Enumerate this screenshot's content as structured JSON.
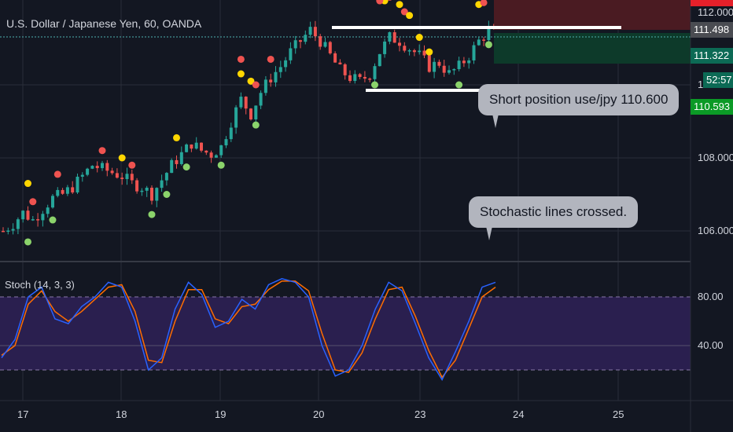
{
  "header": {
    "symbol_title": "U.S. Dollar / Japanese Yen, 60, OANDA"
  },
  "annotations": {
    "short_callout": "Short position use/jpy 110.600",
    "stoch_callout": "Stochastic lines crossed."
  },
  "price_scale": {
    "ticks": [
      "112.000",
      "108.000",
      "106.000"
    ],
    "partial_ticks": [
      "1"
    ],
    "tags": [
      {
        "label": "111.498",
        "color": "#4a4c52"
      },
      {
        "label": "111.322",
        "color": "#0c6a55"
      },
      {
        "label": "52:57",
        "color": "#0c6a55"
      },
      {
        "label": "110.593",
        "color": "#0b9a26"
      }
    ]
  },
  "stoch_panel": {
    "title": "Stoch (14, 3, 3)",
    "ticks": [
      "80.00",
      "40.00"
    ]
  },
  "time_axis": {
    "labels": [
      "17",
      "18",
      "19",
      "20",
      "23",
      "24",
      "25"
    ]
  },
  "colors": {
    "background": "#131722",
    "up_candle": "#26a69a",
    "down_candle": "#ef5350",
    "k_line": "#2962ff",
    "d_line": "#ff6d00",
    "stoch_band": "#2a1f4f",
    "dot_red": "#ef5350",
    "dot_yellow": "#ffd600",
    "dot_green": "#8bd36b"
  },
  "chart_data": [
    {
      "type": "candlestick",
      "title": "U.S. Dollar / Japanese Yen, 60, OANDA",
      "x_ticks": [
        "17",
        "18",
        "19",
        "20",
        "23",
        "24",
        "25"
      ],
      "y_ticks": [
        106.0,
        108.0,
        112.0
      ],
      "ylim": [
        105.2,
        112.6
      ],
      "current_price": 111.498,
      "levels": {
        "short_entry": 110.6,
        "take_profit_zone": 111.322
      },
      "close_path": [
        [
          0,
          106.0
        ],
        [
          2,
          106.2
        ],
        [
          4,
          106.5
        ],
        [
          6,
          106.3
        ],
        [
          8,
          106.6
        ],
        [
          10,
          106.9
        ],
        [
          12,
          107.0
        ],
        [
          14,
          107.2
        ],
        [
          16,
          107.5
        ],
        [
          18,
          107.8
        ],
        [
          20,
          107.7
        ],
        [
          22,
          107.6
        ],
        [
          24,
          107.5
        ],
        [
          26,
          107.3
        ],
        [
          28,
          107.2
        ],
        [
          30,
          107.0
        ],
        [
          32,
          107.4
        ],
        [
          34,
          107.8
        ],
        [
          36,
          108.1
        ],
        [
          38,
          108.4
        ],
        [
          40,
          108.2
        ],
        [
          42,
          108.1
        ],
        [
          44,
          108.3
        ],
        [
          46,
          109.0
        ],
        [
          48,
          109.6
        ],
        [
          50,
          109.2
        ],
        [
          52,
          109.8
        ],
        [
          54,
          110.2
        ],
        [
          56,
          110.5
        ],
        [
          58,
          110.9
        ],
        [
          60,
          111.2
        ],
        [
          62,
          111.5
        ],
        [
          64,
          111.2
        ],
        [
          66,
          110.8
        ],
        [
          68,
          110.4
        ],
        [
          70,
          110.2
        ],
        [
          72,
          110.1
        ],
        [
          74,
          110.3
        ],
        [
          76,
          110.9
        ],
        [
          78,
          111.3
        ],
        [
          80,
          111.2
        ],
        [
          82,
          111.0
        ],
        [
          84,
          110.8
        ],
        [
          86,
          110.5
        ],
        [
          88,
          110.6
        ],
        [
          90,
          110.3
        ],
        [
          92,
          110.5
        ],
        [
          94,
          110.8
        ],
        [
          96,
          111.2
        ],
        [
          98,
          111.5
        ],
        [
          99,
          111.4
        ]
      ]
    },
    {
      "type": "line",
      "title": "Stoch (14, 3, 3)",
      "y_ticks": [
        40,
        80
      ],
      "ylim": [
        0,
        100
      ],
      "overbought": 80,
      "oversold": 20,
      "series": [
        {
          "values": [
            30,
            45,
            80,
            88,
            62,
            58,
            72,
            80,
            92,
            88,
            60,
            20,
            30,
            70,
            92,
            82,
            55,
            60,
            78,
            70,
            90,
            95,
            92,
            80,
            40,
            15,
            20,
            40,
            70,
            92,
            85,
            58,
            30,
            12,
            35,
            60,
            88,
            92
          ]
        },
        {
          "values": [
            32,
            40,
            74,
            85,
            68,
            60,
            68,
            78,
            88,
            90,
            68,
            28,
            26,
            60,
            86,
            86,
            62,
            58,
            72,
            74,
            86,
            93,
            93,
            85,
            50,
            20,
            18,
            34,
            62,
            86,
            88,
            64,
            36,
            14,
            28,
            54,
            80,
            88
          ]
        }
      ]
    }
  ]
}
